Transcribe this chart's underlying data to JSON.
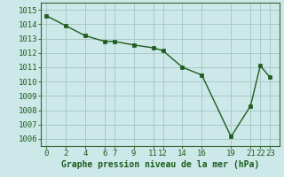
{
  "x_values": [
    0,
    2,
    4,
    6,
    7,
    9,
    11,
    12,
    14,
    16,
    19,
    21,
    22,
    23
  ],
  "y_values": [
    1014.6,
    1013.9,
    1013.2,
    1012.8,
    1012.8,
    1012.55,
    1012.35,
    1012.15,
    1011.0,
    1010.45,
    1006.15,
    1008.3,
    1011.1,
    1010.3
  ],
  "x_ticks": [
    0,
    2,
    4,
    6,
    7,
    9,
    11,
    12,
    14,
    16,
    19,
    21,
    22,
    23
  ],
  "y_ticks": [
    1006,
    1007,
    1008,
    1009,
    1010,
    1011,
    1012,
    1013,
    1014,
    1015
  ],
  "ylim": [
    1005.5,
    1015.5
  ],
  "xlim": [
    -0.5,
    24.0
  ],
  "line_color": "#1e5c1e",
  "marker": "s",
  "marker_size": 2.5,
  "bg_color": "#cce8e8",
  "grid_color": "#aac8c8",
  "xlabel": "Graphe pression niveau de la mer (hPa)",
  "xlabel_color": "#1e5c1e",
  "xlabel_fontsize": 7,
  "tick_fontsize": 6.5,
  "tick_color": "#1e5c1e",
  "linewidth": 1.0,
  "spine_color": "#336633"
}
